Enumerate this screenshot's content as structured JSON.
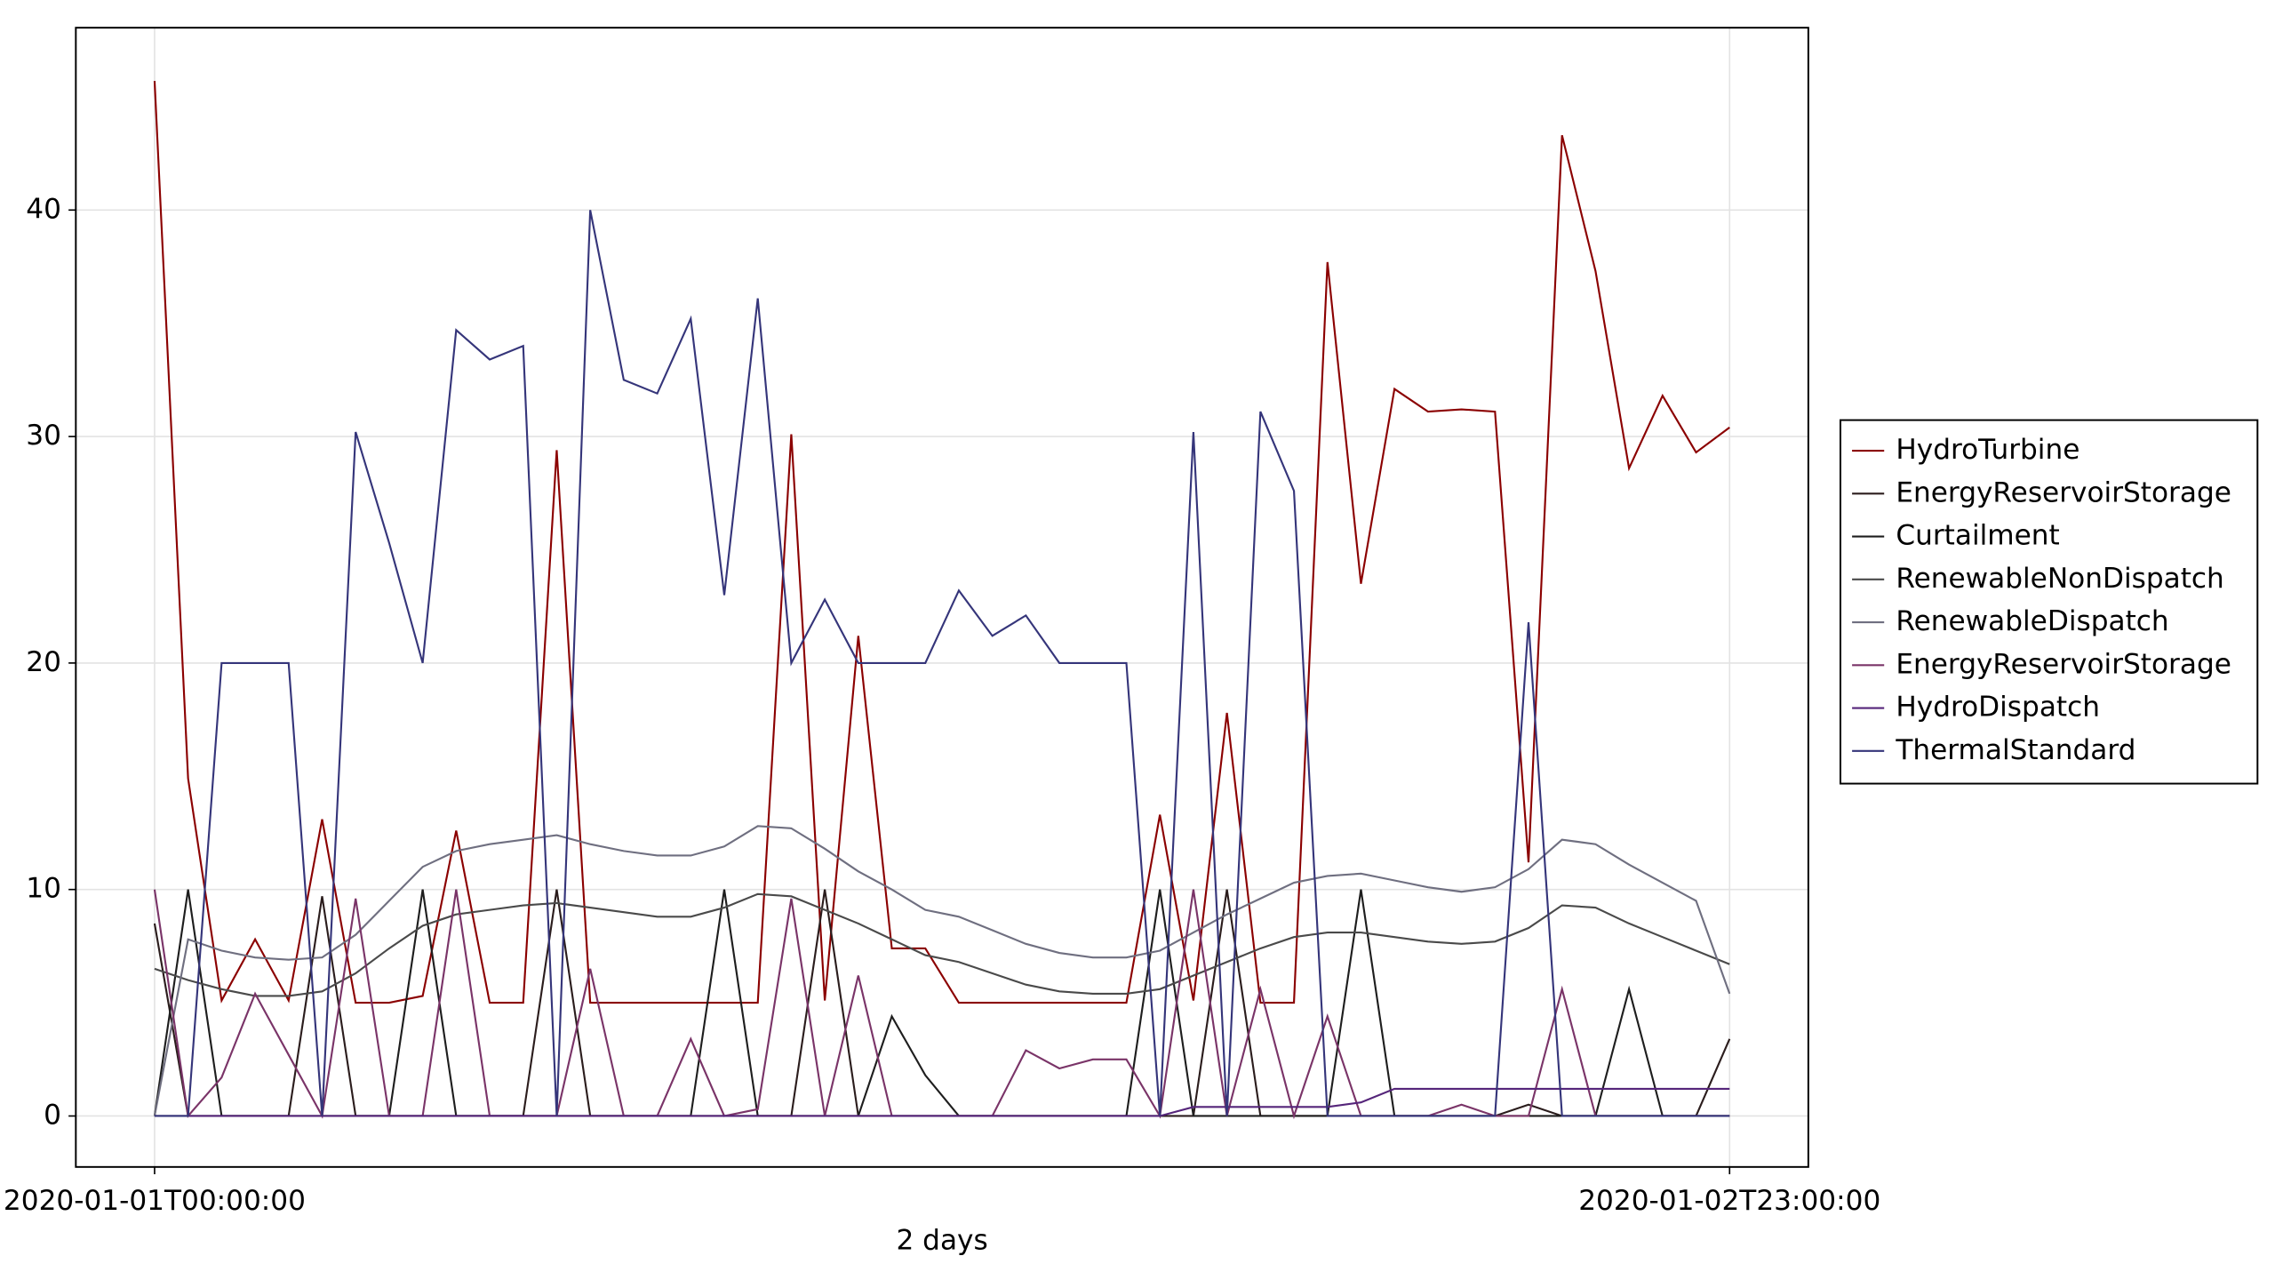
{
  "chart_data": {
    "type": "line",
    "xlabel": "2 days",
    "x": [
      0,
      1,
      2,
      3,
      4,
      5,
      6,
      7,
      8,
      9,
      10,
      11,
      12,
      13,
      14,
      15,
      16,
      17,
      18,
      19,
      20,
      21,
      22,
      23,
      24,
      25,
      26,
      27,
      28,
      29,
      30,
      31,
      32,
      33,
      34,
      35,
      36,
      37,
      38,
      39,
      40,
      41,
      42,
      43,
      44,
      45,
      46,
      47
    ],
    "xlim": [
      -2.35,
      49.35
    ],
    "xticks": [
      {
        "value": 0,
        "label": "2020-01-01T00:00:00"
      },
      {
        "value": 47,
        "label": "2020-01-02T23:00:00"
      }
    ],
    "ylim": [
      -2.25,
      48.05
    ],
    "yticks": [
      0,
      10,
      20,
      30,
      40
    ],
    "grid": true,
    "legend": "right",
    "series": [
      {
        "name": "HydroTurbine",
        "color": "#8b0000",
        "values": [
          45.7,
          14.9,
          5.1,
          7.8,
          5.1,
          13.1,
          5.0,
          5.0,
          5.3,
          12.6,
          5.0,
          5.0,
          29.4,
          5.0,
          5.0,
          5.0,
          5.0,
          5.0,
          5.0,
          30.1,
          5.1,
          21.2,
          7.4,
          7.4,
          5.0,
          5.0,
          5.0,
          5.0,
          5.0,
          5.0,
          13.3,
          5.1,
          17.8,
          5.0,
          5.0,
          37.7,
          23.5,
          32.1,
          31.1,
          31.2,
          31.1,
          11.2,
          43.3,
          37.3,
          28.6,
          31.8,
          29.3,
          30.4
        ]
      },
      {
        "name": "EnergyReservoirStorage",
        "color": "#2b1d1d",
        "values": [
          8.5,
          0,
          0,
          0,
          0,
          9.7,
          0,
          0,
          0,
          0,
          0,
          0,
          10,
          0,
          0,
          0,
          0,
          0,
          0,
          0,
          10,
          0,
          0,
          0,
          0,
          0,
          0,
          0,
          0,
          0,
          0,
          0,
          10,
          0,
          0,
          0,
          0,
          0,
          0,
          0,
          0,
          0.5,
          0,
          0,
          0,
          0,
          0,
          3.4
        ]
      },
      {
        "name": "Curtailment",
        "color": "#1e1e1e",
        "values": [
          0,
          10,
          0,
          0,
          0,
          0,
          0,
          0,
          10,
          0,
          0,
          0,
          0,
          0,
          0,
          0,
          0,
          10,
          0,
          0,
          0,
          0,
          4.4,
          1.8,
          0,
          0,
          0,
          0,
          0,
          0,
          10,
          0,
          0,
          0,
          0,
          0,
          10,
          0,
          0,
          0,
          0,
          0,
          0,
          0,
          5.6,
          0,
          0,
          0
        ]
      },
      {
        "name": "RenewableNonDispatch",
        "color": "#4a4a4a",
        "values": [
          6.5,
          6.0,
          5.6,
          5.3,
          5.3,
          5.5,
          6.3,
          7.4,
          8.4,
          8.9,
          9.1,
          9.3,
          9.4,
          9.2,
          9.0,
          8.8,
          8.8,
          9.2,
          9.8,
          9.7,
          9.1,
          8.5,
          7.8,
          7.1,
          6.8,
          6.3,
          5.8,
          5.5,
          5.4,
          5.4,
          5.6,
          6.2,
          6.8,
          7.4,
          7.9,
          8.1,
          8.1,
          7.9,
          7.7,
          7.6,
          7.7,
          8.3,
          9.3,
          9.2,
          8.5,
          7.9,
          7.3,
          6.7
        ]
      },
      {
        "name": "RenewableDispatch",
        "color": "#6f6f80",
        "values": [
          0,
          7.8,
          7.3,
          7.0,
          6.9,
          7.0,
          8.0,
          9.5,
          11.0,
          11.7,
          12.0,
          12.2,
          12.4,
          12.0,
          11.7,
          11.5,
          11.5,
          11.9,
          12.8,
          12.7,
          11.8,
          10.8,
          10.0,
          9.1,
          8.8,
          8.2,
          7.6,
          7.2,
          7.0,
          7.0,
          7.3,
          8.1,
          8.9,
          9.6,
          10.3,
          10.6,
          10.7,
          10.4,
          10.1,
          9.9,
          10.1,
          10.9,
          12.2,
          12.0,
          11.1,
          10.3,
          9.5,
          5.4
        ]
      },
      {
        "name": "EnergyReservoirStorage",
        "color": "#7a3468",
        "values": [
          10,
          0,
          1.7,
          5.4,
          2.7,
          0,
          9.6,
          0,
          0,
          10,
          0,
          0,
          0,
          6.5,
          0,
          0,
          3.4,
          0,
          0.3,
          9.6,
          0,
          6.2,
          0,
          0,
          0,
          0,
          2.9,
          2.1,
          2.5,
          2.5,
          0,
          10,
          0,
          5.6,
          0,
          4.4,
          0,
          0,
          0,
          0.5,
          0,
          0,
          5.6,
          0,
          0,
          0,
          0,
          0
        ]
      },
      {
        "name": "HydroDispatch",
        "color": "#55257a",
        "values": [
          0,
          0,
          0,
          0,
          0,
          0,
          0,
          0,
          0,
          0,
          0,
          0,
          0,
          0,
          0,
          0,
          0,
          0,
          0,
          0,
          0,
          0,
          0,
          0,
          0,
          0,
          0,
          0,
          0,
          0,
          0,
          0.4,
          0.4,
          0.4,
          0.4,
          0.4,
          0.6,
          1.2,
          1.2,
          1.2,
          1.2,
          1.2,
          1.2,
          1.2,
          1.2,
          1.2,
          1.2,
          1.2
        ]
      },
      {
        "name": "ThermalStandard",
        "color": "#35357a",
        "values": [
          0,
          0,
          20,
          20,
          20,
          0,
          30.2,
          25.3,
          20,
          34.7,
          33.4,
          34.0,
          0,
          40.0,
          32.5,
          31.9,
          35.2,
          23.0,
          36.1,
          20,
          22.8,
          20,
          20,
          20,
          23.2,
          21.2,
          22.1,
          20,
          20,
          20,
          0,
          30.2,
          0,
          31.1,
          27.6,
          0,
          0,
          0,
          0,
          0,
          0,
          21.8,
          0,
          0,
          0,
          0,
          0,
          0
        ]
      }
    ]
  }
}
